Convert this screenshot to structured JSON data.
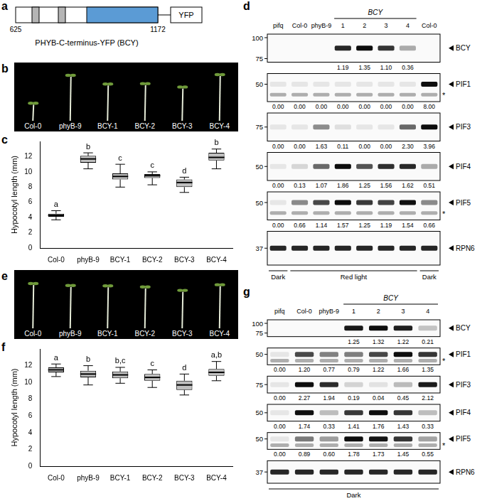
{
  "chart_data": [
    {
      "panel_label": "c",
      "type": "box",
      "categories": [
        "Col-0",
        "phyB-9",
        "BCY-1",
        "BCY-2",
        "BCY-3",
        "BCY-4"
      ],
      "whisker_low": [
        3.7,
        10.4,
        8.0,
        8.3,
        7.3,
        10.4
      ],
      "q1": [
        4.1,
        11.2,
        9.0,
        9.2,
        8.0,
        11.5
      ],
      "median": [
        4.3,
        11.7,
        9.4,
        9.5,
        8.6,
        11.9
      ],
      "q3": [
        4.5,
        12.1,
        9.8,
        9.7,
        9.0,
        12.5
      ],
      "whisker_high": [
        4.9,
        12.5,
        11.0,
        10.0,
        9.3,
        13.0
      ],
      "significance_letters": [
        "a",
        "b",
        "c",
        "c",
        "d",
        "b"
      ],
      "y_label": "Hypocotyl length (mm)",
      "ylim": [
        0,
        14
      ],
      "yticks": [
        0,
        2,
        4,
        6,
        8,
        10,
        12
      ],
      "color": "#bfbfbf",
      "grid": false
    },
    {
      "panel_label": "f",
      "type": "box",
      "categories": [
        "Col-0",
        "phyB-9",
        "BCY-1",
        "BCY-2",
        "BCY-3",
        "BCY-4"
      ],
      "whisker_low": [
        10.7,
        9.7,
        9.9,
        9.4,
        8.5,
        10.2
      ],
      "q1": [
        11.2,
        10.6,
        10.5,
        10.2,
        9.1,
        10.8
      ],
      "median": [
        11.5,
        11.0,
        10.9,
        10.6,
        9.7,
        11.2
      ],
      "q3": [
        11.8,
        11.4,
        11.3,
        11.0,
        10.2,
        11.6
      ],
      "whisker_high": [
        12.2,
        12.0,
        11.8,
        11.5,
        11.0,
        12.5
      ],
      "significance_letters": [
        "a",
        "b",
        "b,c",
        "c",
        "d",
        "a,b"
      ],
      "y_label": "Hypocotyl length (mm)",
      "ylim": [
        0,
        14
      ],
      "yticks": [
        0,
        2,
        4,
        6,
        8,
        10,
        12
      ],
      "color": "#bfbfbf",
      "grid": false
    }
  ],
  "diagram_a": {
    "panel_label": "a",
    "start": 625,
    "end": 1172,
    "tag": "YFP",
    "name": "PHYB-C-terminus-YFP (BCY)"
  },
  "photo_b": {
    "panel_label": "b",
    "labels": [
      "Col-0",
      "phyB-9",
      "BCY-1",
      "BCY-2",
      "BCY-3",
      "BCY-4"
    ]
  },
  "photo_e": {
    "panel_label": "e",
    "labels": [
      "Col-0",
      "phyB-9",
      "BCY-1",
      "BCY-2",
      "BCY-3",
      "BCY-4"
    ]
  },
  "blot_d": {
    "panel_label": "d",
    "lanes": [
      "pifq",
      "Col-0",
      "phyB-9",
      "1",
      "2",
      "3",
      "4",
      "Col-0"
    ],
    "lane_groups": [
      null,
      null,
      null,
      "BCY",
      "BCY",
      "BCY",
      "BCY",
      null
    ],
    "rows": [
      {
        "name": "BCY",
        "markers": [
          100,
          75
        ],
        "values": [
          null,
          null,
          null,
          1.19,
          1.35,
          1.1,
          0.36,
          null
        ],
        "value_labels": [
          null,
          null,
          null,
          "1.19",
          "1.35",
          "1.10",
          "0.36",
          null
        ]
      },
      {
        "name": "PIF1",
        "markers": [
          50
        ],
        "note": "*",
        "values": [
          0,
          0,
          0,
          0,
          0,
          0,
          0,
          8
        ],
        "value_labels": [
          "0.00",
          "0.00",
          "0.00",
          "0.00",
          "0.00",
          "0.00",
          "0.00",
          "8.00"
        ]
      },
      {
        "name": "PIF3",
        "markers": [
          75
        ],
        "values": [
          0,
          0,
          1.63,
          0.11,
          0,
          0,
          2.3,
          3.96
        ],
        "value_labels": [
          "0.00",
          "0.00",
          "1.63",
          "0.11",
          "0.00",
          "0.00",
          "2.30",
          "3.96"
        ]
      },
      {
        "name": "PIF4",
        "markers": [
          50
        ],
        "values": [
          0,
          0.13,
          1.07,
          1.86,
          1.25,
          1.56,
          1.62,
          0.51
        ],
        "value_labels": [
          "0.00",
          "0.13",
          "1.07",
          "1.86",
          "1.25",
          "1.56",
          "1.62",
          "0.51"
        ]
      },
      {
        "name": "PIF5",
        "markers": [
          50
        ],
        "note": "*",
        "values": [
          0,
          0.66,
          1.14,
          1.57,
          1.25,
          1.19,
          1.54,
          0.66
        ],
        "value_labels": [
          "0.00",
          "0.66",
          "1.14",
          "1.57",
          "1.25",
          "1.19",
          "1.54",
          "0.66"
        ]
      },
      {
        "name": "RPN6",
        "markers": [
          37
        ]
      }
    ],
    "conditions": [
      "Dark",
      "Red light",
      "Red light",
      "Red light",
      "Red light",
      "Red light",
      "Red light",
      "Dark"
    ]
  },
  "blot_g": {
    "panel_label": "g",
    "lanes": [
      "pifq",
      "Col-0",
      "phyB-9",
      "1",
      "2",
      "3",
      "4"
    ],
    "lane_groups": [
      null,
      null,
      null,
      "BCY",
      "BCY",
      "BCY",
      "BCY"
    ],
    "rows": [
      {
        "name": "BCY",
        "markers": [
          100,
          75
        ],
        "values": [
          null,
          null,
          null,
          1.25,
          1.32,
          1.22,
          0.21
        ],
        "value_labels": [
          null,
          null,
          null,
          "1.25",
          "1.32",
          "1.22",
          "0.21"
        ]
      },
      {
        "name": "PIF1",
        "markers": [
          50
        ],
        "note": "*",
        "values": [
          0,
          1.2,
          0.77,
          0.79,
          1.22,
          1.66,
          1.35
        ],
        "value_labels": [
          "0.00",
          "1.20",
          "0.77",
          "0.79",
          "1.22",
          "1.66",
          "1.35"
        ]
      },
      {
        "name": "PIF3",
        "markers": [
          75
        ],
        "values": [
          0,
          2.27,
          1.94,
          0.19,
          0.04,
          0.45,
          2.12
        ],
        "value_labels": [
          "0.00",
          "2.27",
          "1.94",
          "0.19",
          "0.04",
          "0.45",
          "2.12"
        ]
      },
      {
        "name": "PIF4",
        "markers": [
          50
        ],
        "values": [
          0,
          1.74,
          0.33,
          1.41,
          1.76,
          1.43,
          0.33
        ],
        "value_labels": [
          "0.00",
          "1.74",
          "0.33",
          "1.41",
          "1.76",
          "1.43",
          "0.33"
        ]
      },
      {
        "name": "PIF5",
        "markers": [
          50
        ],
        "note": "*",
        "values": [
          0,
          0.89,
          0.6,
          1.78,
          1.73,
          1.45,
          0.55
        ],
        "value_labels": [
          "0.00",
          "0.89",
          "0.60",
          "1.78",
          "1.73",
          "1.45",
          "0.55"
        ]
      },
      {
        "name": "RPN6",
        "markers": [
          37
        ]
      }
    ],
    "conditions": [
      "Dark",
      "Dark",
      "Dark",
      "Dark",
      "Dark",
      "Dark",
      "Dark"
    ]
  }
}
